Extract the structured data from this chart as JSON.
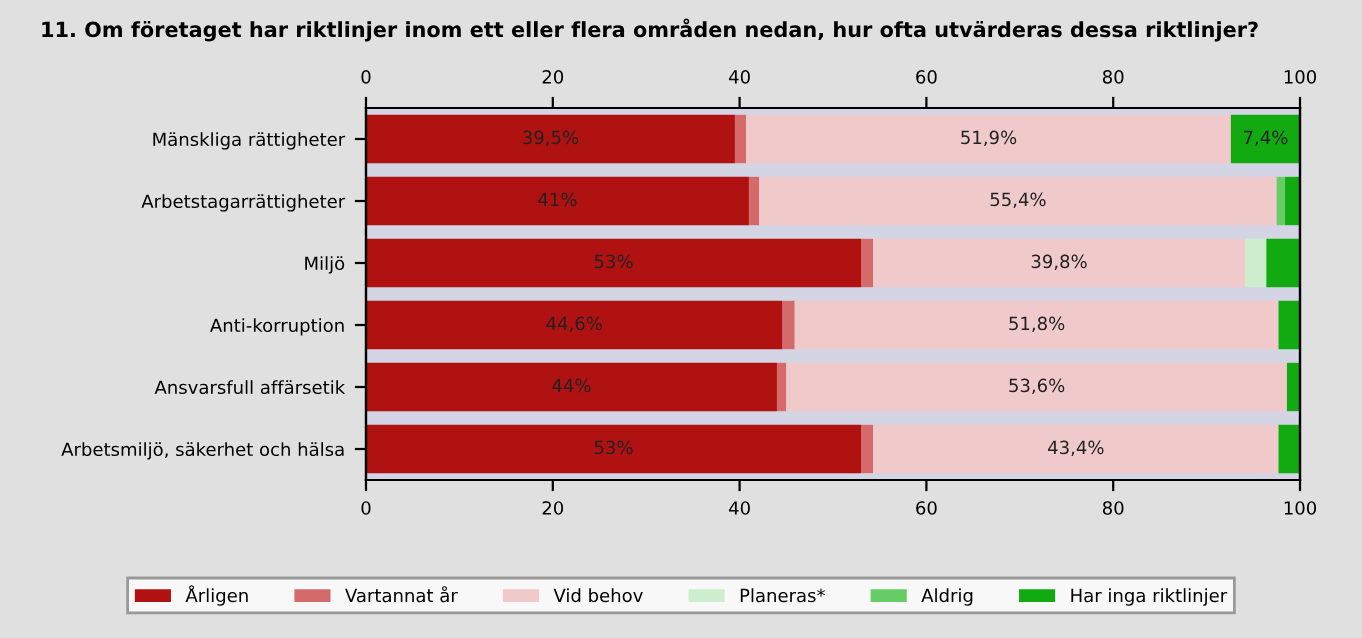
{
  "chart_data": {
    "type": "bar",
    "orientation": "horizontal",
    "stacked": true,
    "title": "11. Om företaget har riktlinjer inom ett eller flera områden nedan, hur ofta utvärderas dessa riktlinjer?",
    "categories": [
      "Mänskliga rättigheter",
      "Arbetstagarrättigheter",
      "Miljö",
      "Anti-korruption",
      "Ansvarsfull affärsetik",
      "Arbetsmiljö, säkerhet och hälsa"
    ],
    "series": [
      {
        "name": "Årligen",
        "color": "#b01212",
        "values": [
          39.5,
          41,
          53,
          44.6,
          44,
          53
        ],
        "value_labels": [
          "39,5%",
          "41%",
          "53%",
          "44,6%",
          "44%",
          "53%"
        ]
      },
      {
        "name": "Vartannat år",
        "color": "#d46a6a",
        "values": [
          1.2,
          1.1,
          1.3,
          1.3,
          1.0,
          1.3
        ]
      },
      {
        "name": "Vid behov",
        "color": "#f0caca",
        "values": [
          51.9,
          55.4,
          39.8,
          51.8,
          53.6,
          43.4
        ],
        "value_labels": [
          "51,9%",
          "55,4%",
          "39,8%",
          "51,8%",
          "53,6%",
          "43,4%"
        ]
      },
      {
        "name": "Planeras*",
        "color": "#cdeecd",
        "values": [
          0,
          0,
          2.3,
          0,
          0,
          0
        ]
      },
      {
        "name": "Aldrig",
        "color": "#66cc66",
        "values": [
          0,
          0.9,
          0,
          0,
          0,
          0
        ]
      },
      {
        "name": "Har inga riktlinjer",
        "color": "#11aa11",
        "values": [
          7.4,
          1.6,
          3.6,
          2.3,
          1.4,
          2.3
        ],
        "value_labels": [
          "7,4%",
          null,
          null,
          null,
          null,
          null
        ]
      }
    ],
    "xlim": [
      0,
      100
    ],
    "xticks": [
      0,
      20,
      40,
      60,
      80,
      100
    ],
    "x2lim": [
      0,
      100
    ],
    "x2ticks": [
      0,
      20,
      40,
      60,
      80,
      100
    ],
    "grid": false,
    "legend": "bottom"
  }
}
